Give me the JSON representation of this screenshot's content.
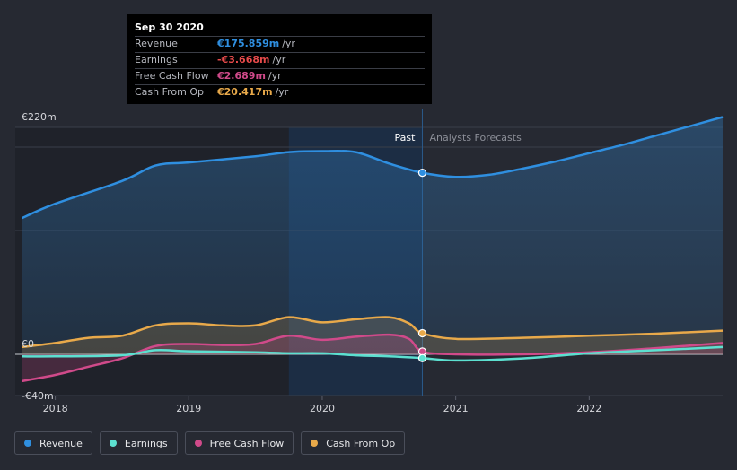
{
  "chart_data": {
    "type": "area",
    "y_tick_labels": [
      "€220m",
      "€0",
      "-€40m"
    ],
    "x_tick_labels": [
      "2018",
      "2019",
      "2020",
      "2021",
      "2022"
    ],
    "ylim": [
      -40,
      220
    ],
    "xlim": [
      2017.7,
      2023.0
    ],
    "grid": true,
    "legend_position": "bottom-left",
    "past_label": "Past",
    "forecast_label": "Analysts Forecasts",
    "divider_x": 2020.75,
    "series": [
      {
        "name": "Revenue",
        "color": "#2f8fe0",
        "fill": true,
        "x": [
          2017.75,
          2018.0,
          2018.5,
          2018.75,
          2019.0,
          2019.5,
          2019.75,
          2020.0,
          2020.25,
          2020.5,
          2020.75,
          2021.0,
          2021.25,
          2021.5,
          2021.75,
          2022.0,
          2022.25,
          2022.5,
          2022.75,
          2023.0
        ],
        "values": [
          132,
          146,
          168,
          183,
          186,
          192,
          196,
          197,
          196,
          185,
          176,
          172,
          174,
          180,
          187,
          195,
          203,
          212,
          221,
          230
        ]
      },
      {
        "name": "Earnings",
        "color": "#5ce0d0",
        "fill": false,
        "x": [
          2017.75,
          2018.0,
          2018.5,
          2018.75,
          2019.0,
          2019.5,
          2019.75,
          2020.0,
          2020.25,
          2020.5,
          2020.75,
          2021.0,
          2021.5,
          2022.0,
          2022.5,
          2023.0
        ],
        "values": [
          -2,
          -2,
          -1,
          4,
          3,
          2,
          1,
          1,
          -1,
          -2,
          -3.668,
          -6,
          -4,
          1,
          4,
          7
        ]
      },
      {
        "name": "Free Cash Flow",
        "color": "#d04a8a",
        "fill": true,
        "x": [
          2017.75,
          2018.0,
          2018.25,
          2018.5,
          2018.75,
          2019.0,
          2019.25,
          2019.5,
          2019.75,
          2020.0,
          2020.25,
          2020.5,
          2020.65,
          2020.75,
          2021.0,
          2021.5,
          2022.0,
          2022.5,
          2023.0
        ],
        "values": [
          -26,
          -20,
          -12,
          -4,
          8,
          10,
          9,
          10,
          18,
          14,
          17,
          19,
          15,
          2.689,
          0,
          0,
          2,
          6,
          11
        ]
      },
      {
        "name": "Cash From Op",
        "color": "#e8a94a",
        "fill": true,
        "x": [
          2017.75,
          2018.0,
          2018.25,
          2018.5,
          2018.75,
          2019.0,
          2019.25,
          2019.5,
          2019.75,
          2020.0,
          2020.25,
          2020.5,
          2020.65,
          2020.75,
          2021.0,
          2021.5,
          2022.0,
          2022.5,
          2023.0
        ],
        "values": [
          7,
          11,
          16,
          18,
          28,
          30,
          28,
          28,
          36,
          31,
          34,
          36,
          30,
          20.417,
          15,
          16,
          18,
          20,
          23
        ]
      }
    ]
  },
  "tooltip": {
    "date": "Sep 30 2020",
    "rows": [
      {
        "label": "Revenue",
        "value": "€175.859m",
        "unit": "/yr",
        "color": "#2f8fe0"
      },
      {
        "label": "Earnings",
        "value": "-€3.668m",
        "unit": "/yr",
        "color": "#e64a4a"
      },
      {
        "label": "Free Cash Flow",
        "value": "€2.689m",
        "unit": "/yr",
        "color": "#d04a8a"
      },
      {
        "label": "Cash From Op",
        "value": "€20.417m",
        "unit": "/yr",
        "color": "#e8a94a"
      }
    ]
  },
  "legend": [
    {
      "label": "Revenue",
      "color": "#2f8fe0"
    },
    {
      "label": "Earnings",
      "color": "#5ce0d0"
    },
    {
      "label": "Free Cash Flow",
      "color": "#d04a8a"
    },
    {
      "label": "Cash From Op",
      "color": "#e8a94a"
    }
  ]
}
